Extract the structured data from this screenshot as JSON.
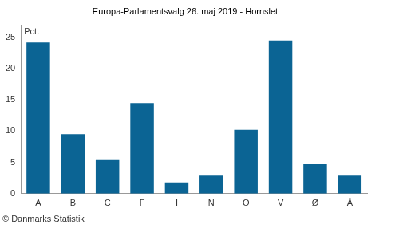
{
  "chart_data": {
    "type": "bar",
    "title": "Europa-Parlamentsvalg 26. maj 2019 - Hornslet",
    "y_label": "Pct.",
    "source": "© Danmarks Statistik",
    "categories": [
      "A",
      "B",
      "C",
      "F",
      "I",
      "N",
      "O",
      "V",
      "Ø",
      "Å"
    ],
    "values": [
      24.2,
      9.5,
      5.5,
      14.5,
      1.8,
      3.0,
      10.2,
      24.5,
      4.8,
      3.0
    ],
    "color": "#0b6494",
    "ylim": [
      0,
      27
    ],
    "yticks": [
      0,
      5,
      10,
      15,
      20,
      25
    ],
    "grid": false
  }
}
